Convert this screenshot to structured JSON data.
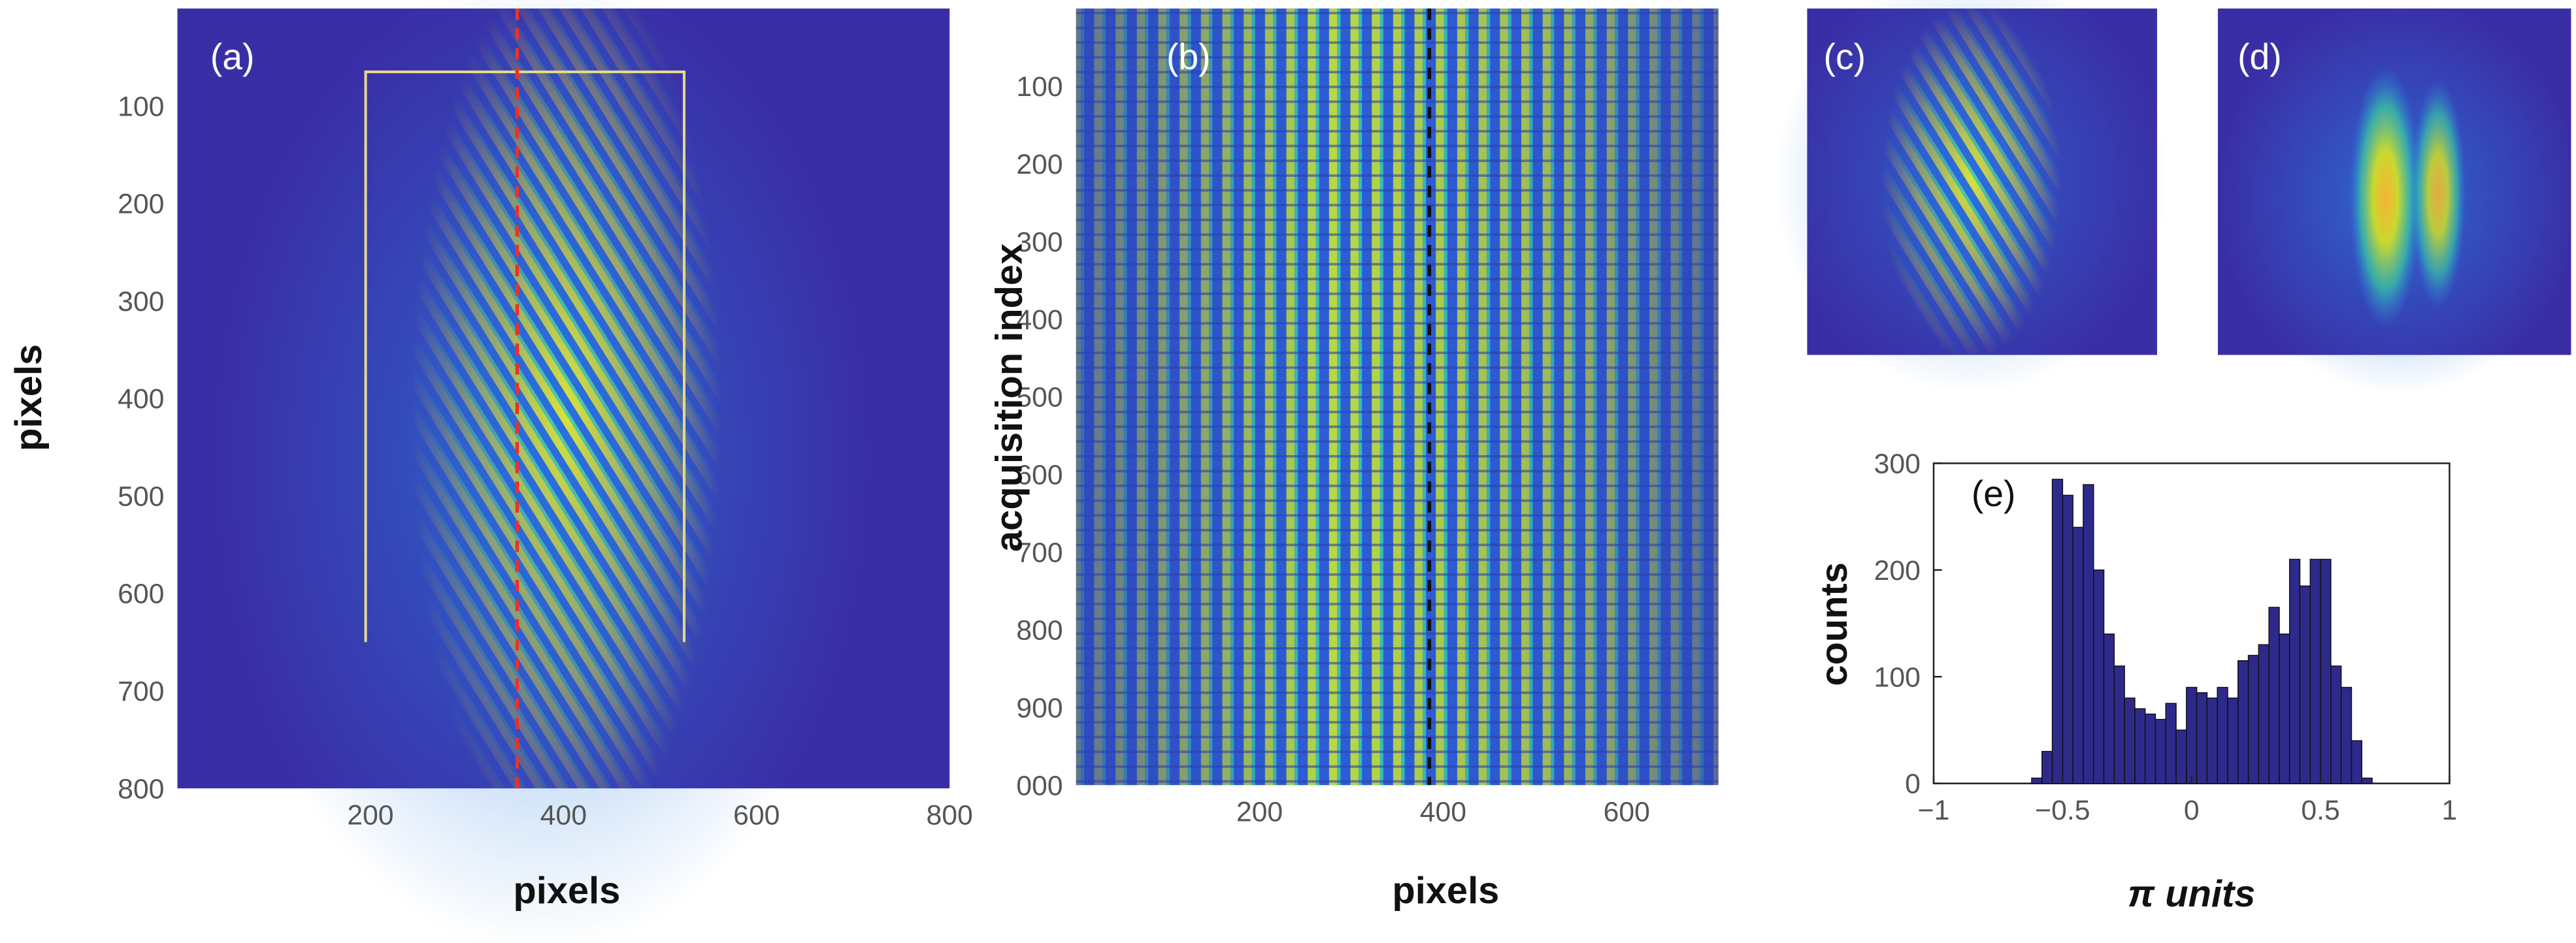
{
  "chart_data": [
    {
      "type": "image",
      "label": "(a)",
      "xlabel": "pixels",
      "ylabel": "pixels",
      "xlim": [
        0,
        800
      ],
      "ylim": [
        800,
        0
      ],
      "xticks": [
        200,
        400,
        600,
        800
      ],
      "yticks": [
        100,
        200,
        300,
        400,
        500,
        600,
        700,
        800
      ],
      "vlines": [
        {
          "x": 352,
          "color": "#e8312f"
        }
      ],
      "bracket": {
        "x": [
          195,
          525
        ],
        "y": [
          65,
          650
        ],
        "color": "#e6d98a"
      }
    },
    {
      "type": "image",
      "label": "(b)",
      "xlabel": "pixels",
      "ylabel": "acquisition index",
      "xlim": [
        0,
        700
      ],
      "ylim": [
        1000,
        0
      ],
      "xticks": [
        200,
        400,
        600
      ],
      "yticks": [
        100,
        200,
        300,
        400,
        500,
        600,
        700,
        800,
        900,
        {
          "value": 1000,
          "label": "000"
        }
      ],
      "vlines": [
        {
          "x": 385,
          "color": "#111111"
        }
      ]
    },
    {
      "type": "image",
      "label": "(c)"
    },
    {
      "type": "image",
      "label": "(d)"
    },
    {
      "type": "histogram",
      "label": "(e)",
      "xlabel": "π units",
      "ylabel": "counts",
      "color": "#2e2a8c",
      "xlim": [
        -1,
        1
      ],
      "ylim": [
        0,
        300
      ],
      "xticks": [
        {
          "value": -1,
          "label": "−1"
        },
        {
          "value": -0.5,
          "label": "−0.5"
        },
        0,
        0.5,
        1
      ],
      "yticks": [
        0,
        100,
        200,
        300
      ],
      "bins": [
        -0.62,
        -0.58,
        -0.54,
        -0.5,
        -0.46,
        -0.42,
        -0.38,
        -0.34,
        -0.3,
        -0.26,
        -0.22,
        -0.18,
        -0.14,
        -0.1,
        -0.06,
        -0.02,
        0.02,
        0.06,
        0.1,
        0.14,
        0.18,
        0.22,
        0.26,
        0.3,
        0.34,
        0.38,
        0.42,
        0.46,
        0.5,
        0.54,
        0.58,
        0.62,
        0.66,
        0.7
      ],
      "values": [
        5,
        30,
        285,
        270,
        240,
        280,
        200,
        140,
        110,
        80,
        70,
        65,
        60,
        75,
        50,
        90,
        85,
        80,
        90,
        80,
        115,
        120,
        130,
        165,
        140,
        210,
        185,
        210,
        210,
        110,
        90,
        40,
        5
      ]
    }
  ]
}
